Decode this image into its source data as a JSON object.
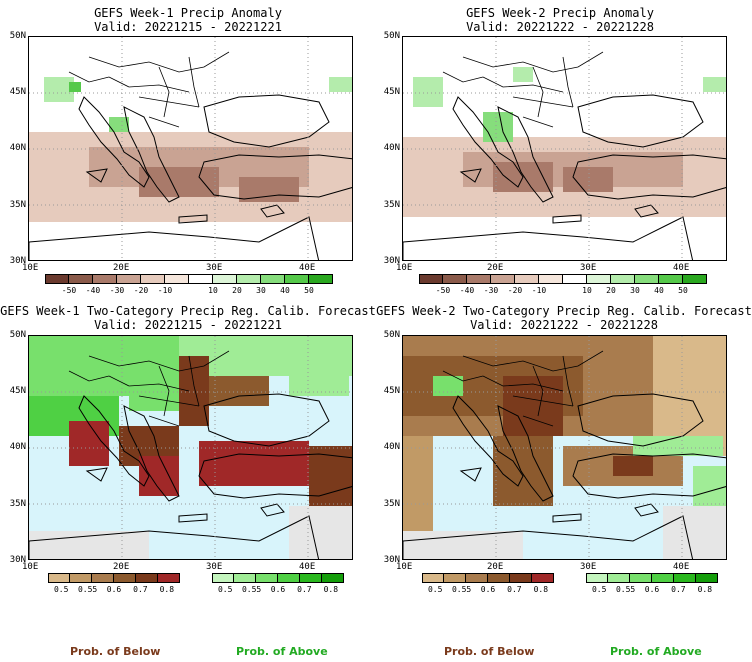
{
  "panels": [
    {
      "title": "GEFS Week-1 Precip Anomaly",
      "valid": "Valid: 20221215 - 20221221",
      "lat_labels": [
        "50N",
        "45N",
        "40N",
        "35N",
        "30N"
      ],
      "lon_labels": [
        "10E",
        "20E",
        "30E",
        "40E"
      ]
    },
    {
      "title": "GEFS Week-2 Precip Anomaly",
      "valid": "Valid: 20221222 - 20221228",
      "lat_labels": [
        "50N",
        "45N",
        "40N",
        "35N",
        "30N"
      ],
      "lon_labels": [
        "10E",
        "20E",
        "30E",
        "40E"
      ]
    },
    {
      "title": "GEFS Week-1 Two-Category Precip Reg. Calib. Forecast",
      "valid": "Valid: 20221215 - 20221221",
      "lat_labels": [
        "50N",
        "45N",
        "40N",
        "35N",
        "30N"
      ],
      "lon_labels": [
        "10E",
        "20E",
        "30E",
        "40E"
      ]
    },
    {
      "title": "GEFS Week-2 Two-Category Precip Reg. Calib. Forecast",
      "valid": "Valid: 20221222 - 20221228",
      "lat_labels": [
        "50N",
        "45N",
        "40N",
        "35N",
        "30N"
      ],
      "lon_labels": [
        "10E",
        "20E",
        "30E",
        "40E"
      ]
    }
  ],
  "anomaly_colorbar": {
    "ticks": [
      "-50",
      "-40",
      "-30",
      "-20",
      "-10",
      "10",
      "20",
      "30",
      "40",
      "50"
    ],
    "colors": [
      "#6b3a2e",
      "#8a5a4a",
      "#a97a6a",
      "#c9a393",
      "#e6cbbd",
      "#f5e6dc",
      "#ffffff",
      "#ddf5d8",
      "#b4ecac",
      "#86dd7c",
      "#55c94a",
      "#2aa820"
    ]
  },
  "below_colorbar": {
    "ticks": [
      "0.5",
      "0.55",
      "0.6",
      "0.7",
      "0.8"
    ],
    "colors": [
      "#d9b98a",
      "#c19a66",
      "#a97c4e",
      "#8c5a2e",
      "#7a3a1c",
      "#a02828"
    ]
  },
  "above_colorbar": {
    "ticks": [
      "0.5",
      "0.55",
      "0.6",
      "0.7",
      "0.8"
    ],
    "colors": [
      "#c4f5be",
      "#a0ec96",
      "#78e06c",
      "#4fd044",
      "#2ab81e",
      "#149e0a"
    ]
  },
  "legend": {
    "prob_below": "Prob. of Below",
    "prob_above": "Prob. of Above",
    "below_color": "#7a3a1c",
    "above_color": "#22aa22"
  },
  "colors": {
    "sea": "#d8f4fb",
    "land": "#ffffff",
    "no_data": "#e6e6e6",
    "green_light": "#b4ecac",
    "green_mid": "#86dd7c",
    "green_dark": "#55c94a",
    "brown_light": "#e6cbbd",
    "brown_mid": "#c9a393",
    "brown_dark": "#a97a6a"
  }
}
